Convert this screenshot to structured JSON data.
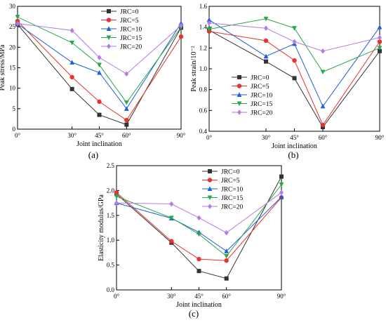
{
  "figure": {
    "panels": [
      {
        "id": "a",
        "label": "(a)"
      },
      {
        "id": "b",
        "label": "(b)"
      },
      {
        "id": "c",
        "label": "(c)"
      }
    ]
  },
  "chart_data": [
    {
      "type": "line",
      "panel_label": "(a)",
      "xlabel": "Joint inclination",
      "ylabel": "Peak stress/MPa",
      "x": [
        0,
        30,
        45,
        60,
        90
      ],
      "xticklabels": [
        "0°",
        "30°",
        "45°",
        "60°",
        "90°"
      ],
      "ylim": [
        0,
        30
      ],
      "yticks": [
        0,
        5,
        10,
        15,
        20,
        25,
        30
      ],
      "yticklabels": [
        "0",
        "5",
        "10",
        "15",
        "20",
        "25",
        "30"
      ],
      "grid": false,
      "legend_position": "top-right",
      "series": [
        {
          "name": "JRC=0",
          "color": "#333333",
          "marker": "square",
          "values": [
            25.6,
            9.8,
            3.5,
            1.1,
            24.8
          ]
        },
        {
          "name": "JRC=5",
          "color": "#e8322c",
          "marker": "circle",
          "values": [
            26.4,
            12.7,
            6.7,
            2.2,
            22.6
          ]
        },
        {
          "name": "JRC=10",
          "color": "#1f5fd6",
          "marker": "triangle-up",
          "values": [
            25.7,
            16.3,
            13.8,
            5.0,
            25.9
          ]
        },
        {
          "name": "JRC=15",
          "color": "#2ba84a",
          "marker": "triangle-down",
          "values": [
            27.4,
            21.1,
            15.7,
            6.5,
            24.9
          ]
        },
        {
          "name": "JRC=20",
          "color": "#b47ae8",
          "marker": "diamond",
          "values": [
            25.8,
            24.1,
            17.5,
            13.5,
            25.3
          ]
        }
      ]
    },
    {
      "type": "line",
      "panel_label": "(b)",
      "xlabel": "Joint inclination",
      "ylabel": "Peak strain/10⁻²",
      "x": [
        0,
        30,
        45,
        60,
        90
      ],
      "xticklabels": [
        "0°",
        "30°",
        "45°",
        "60°",
        "90°"
      ],
      "ylim": [
        0.4,
        1.6
      ],
      "yticks": [
        0.4,
        0.6,
        0.8,
        1.0,
        1.2,
        1.4,
        1.6
      ],
      "yticklabels": [
        "0.4",
        "0.6",
        "0.8",
        "1.0",
        "1.2",
        "1.4",
        "1.6"
      ],
      "grid": false,
      "legend_position": "bottom-left",
      "series": [
        {
          "name": "JRC=0",
          "color": "#333333",
          "marker": "square",
          "values": [
            1.37,
            1.07,
            0.91,
            0.44,
            1.17
          ]
        },
        {
          "name": "JRC=5",
          "color": "#e8322c",
          "marker": "circle",
          "values": [
            1.36,
            1.27,
            1.08,
            0.46,
            1.26
          ]
        },
        {
          "name": "JRC=10",
          "color": "#1f5fd6",
          "marker": "triangle-up",
          "values": [
            1.47,
            1.12,
            1.24,
            0.64,
            1.4
          ]
        },
        {
          "name": "JRC=15",
          "color": "#2ba84a",
          "marker": "triangle-down",
          "values": [
            1.38,
            1.48,
            1.39,
            0.97,
            1.2
          ]
        },
        {
          "name": "JRC=20",
          "color": "#b47ae8",
          "marker": "diamond",
          "values": [
            1.44,
            1.39,
            1.26,
            1.17,
            1.3
          ]
        }
      ]
    },
    {
      "type": "line",
      "panel_label": "(c)",
      "xlabel": "Joint inclination",
      "ylabel": "Elasticity modulus/GPa",
      "x": [
        0,
        30,
        45,
        60,
        90
      ],
      "xticklabels": [
        "0°",
        "30°",
        "45°",
        "60°",
        "90°"
      ],
      "ylim": [
        0.0,
        2.5
      ],
      "yticks": [
        0.0,
        0.5,
        1.0,
        1.5,
        2.0,
        2.5
      ],
      "yticklabels": [
        "0.0",
        "0.5",
        "1.0",
        "1.5",
        "2.0",
        "2.5"
      ],
      "grid": false,
      "legend_position": "top-right",
      "series": [
        {
          "name": "JRC=0",
          "color": "#333333",
          "marker": "square",
          "values": [
            1.93,
            0.95,
            0.38,
            0.23,
            2.28
          ]
        },
        {
          "name": "JRC=5",
          "color": "#e8322c",
          "marker": "circle",
          "values": [
            1.96,
            0.98,
            0.62,
            0.59,
            1.86
          ]
        },
        {
          "name": "JRC=10",
          "color": "#1f5fd6",
          "marker": "triangle-up",
          "values": [
            1.75,
            1.44,
            1.16,
            0.78,
            1.87
          ]
        },
        {
          "name": "JRC=15",
          "color": "#2ba84a",
          "marker": "triangle-down",
          "values": [
            1.88,
            1.45,
            1.12,
            0.68,
            2.12
          ]
        },
        {
          "name": "JRC=20",
          "color": "#b47ae8",
          "marker": "diamond",
          "values": [
            1.75,
            1.73,
            1.45,
            1.15,
            1.96
          ]
        }
      ]
    }
  ]
}
